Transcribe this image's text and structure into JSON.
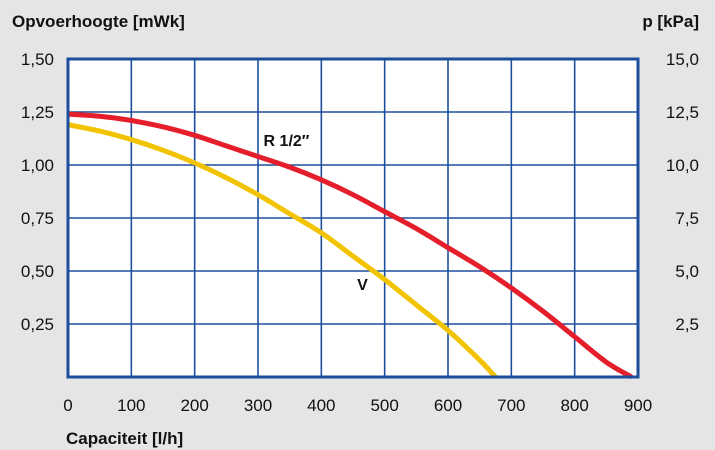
{
  "chart_data": {
    "type": "line",
    "ylabel_left": "Opvoerhoogte [mWk]",
    "ylabel_right": "p [kPa]",
    "xlabel": "Capaciteit [l/h]",
    "xlim": [
      0,
      900
    ],
    "ylim_left": [
      0,
      1.5
    ],
    "ylim_right": [
      0,
      15
    ],
    "x_ticks": [
      "0",
      "100",
      "200",
      "300",
      "400",
      "500",
      "600",
      "700",
      "800",
      "900"
    ],
    "y_ticks_left": [
      "0,25",
      "0,50",
      "0,75",
      "1,00",
      "1,25",
      "1,50"
    ],
    "y_ticks_right": [
      "2,5",
      "5,0",
      "7,5",
      "10,0",
      "12,5",
      "15,0"
    ],
    "grid": true,
    "colors": {
      "background": "#e5e5e5",
      "plot": "#ffffff",
      "grid": "#1d4e9e",
      "border": "#1d4e9e"
    },
    "series": [
      {
        "name": "R 1/2″",
        "color": "#e41e2b",
        "x": [
          0,
          50,
          100,
          150,
          200,
          250,
          300,
          350,
          400,
          450,
          500,
          550,
          600,
          650,
          700,
          750,
          800,
          850,
          890
        ],
        "y": [
          1.24,
          1.23,
          1.21,
          1.18,
          1.14,
          1.09,
          1.04,
          0.99,
          0.93,
          0.86,
          0.78,
          0.7,
          0.61,
          0.52,
          0.42,
          0.31,
          0.19,
          0.07,
          0.0
        ]
      },
      {
        "name": "V",
        "color": "#f2c300",
        "x": [
          0,
          50,
          100,
          150,
          200,
          250,
          300,
          350,
          400,
          450,
          500,
          550,
          600,
          650,
          675
        ],
        "y": [
          1.19,
          1.16,
          1.12,
          1.07,
          1.01,
          0.94,
          0.86,
          0.77,
          0.68,
          0.57,
          0.46,
          0.34,
          0.22,
          0.08,
          0.0
        ]
      }
    ],
    "annotations": [
      {
        "text": "R 1/2″",
        "x": 345,
        "y": 1.09
      },
      {
        "text": "V",
        "x": 465,
        "y": 0.41
      }
    ]
  }
}
